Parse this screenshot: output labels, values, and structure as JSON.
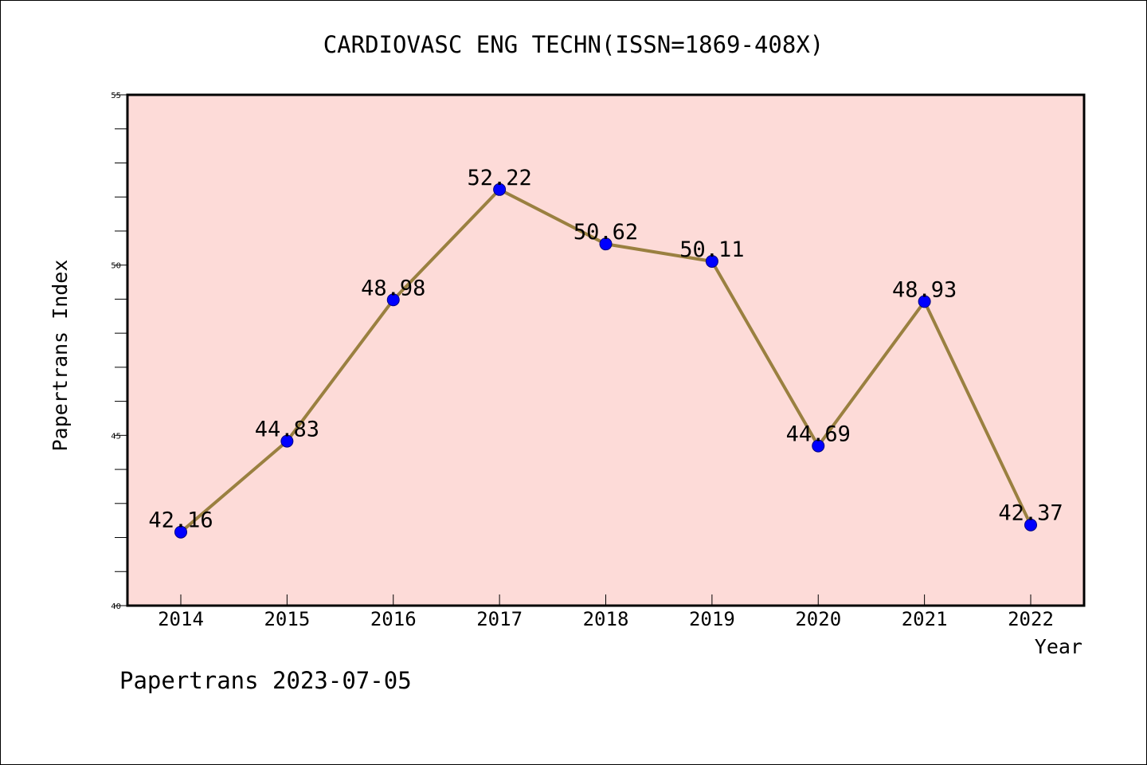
{
  "chart_data": {
    "type": "line",
    "title": "CARDIOVASC ENG TECHN(ISSN=1869-408X)",
    "xlabel": "Year",
    "ylabel": "Papertrans Index",
    "categories": [
      "2014",
      "2015",
      "2016",
      "2017",
      "2018",
      "2019",
      "2020",
      "2021",
      "2022"
    ],
    "values": [
      42.16,
      44.83,
      48.98,
      52.22,
      50.62,
      50.11,
      44.69,
      48.93,
      42.37
    ],
    "data_labels": [
      "42.16",
      "44.83",
      "48.98",
      "52.22",
      "50.62",
      "50.11",
      "44.69",
      "48.93",
      "42.37"
    ],
    "ylim": [
      40,
      55
    ],
    "y_ticks": [
      "40",
      "45",
      "50",
      "55"
    ],
    "y_minor_step": 1,
    "grid": false,
    "legend": "none"
  },
  "footer": {
    "text": "Papertrans 2023-07-05"
  },
  "colors": {
    "plot_background": "#fddbd8",
    "line": "#9a8040",
    "marker": "#0000ff",
    "axis": "#000000"
  }
}
